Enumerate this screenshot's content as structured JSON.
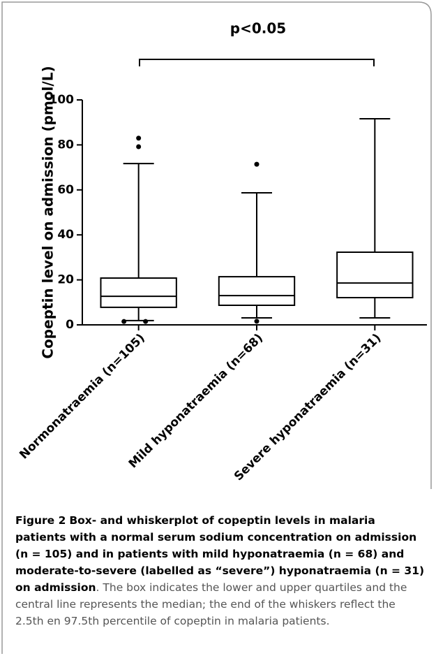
{
  "chart_data": {
    "type": "box",
    "annotation": "p<0.05",
    "y_label": "Copeptin level on admission (pmol/L)",
    "categories": [
      "Normonatraemia (n=105)",
      "Mild hyponatraemia (n=68)",
      "Severe hyponatraemia (n=31)"
    ],
    "boxes": [
      {
        "min": 1.9,
        "q1": 7.8,
        "median": 12.7,
        "q3": 20.8,
        "max": 71.7,
        "outliers": [
          83,
          79.2,
          1.5,
          1.5
        ]
      },
      {
        "min": 3.1,
        "q1": 8.7,
        "median": 13.0,
        "q3": 21.4,
        "max": 58.7,
        "outliers": [
          71.4,
          1.6
        ]
      },
      {
        "min": 3.1,
        "q1": 12.1,
        "median": 18.6,
        "q3": 32.3,
        "max": 91.6,
        "outliers": []
      }
    ],
    "color": "#000000",
    "ylim": [
      0,
      100
    ],
    "yticks": [
      0,
      20,
      40,
      60,
      80,
      100
    ]
  },
  "caption": {
    "label": "Figure 2",
    "bold_text": "Box- and whiskerplot of copeptin levels in malaria patients with a normal serum sodium concentration on admission (n = 105) and in patients with mild hyponatraemia (n = 68) and moderate-to-severe (labelled as “severe”) hyponatraemia (n = 31) on admission",
    "text": ". The box indicates the lower and upper quartiles and the central line represents the median; the end of the whiskers reflect the 2.5th en 97.5th percentile of copeptin in malaria patients."
  }
}
